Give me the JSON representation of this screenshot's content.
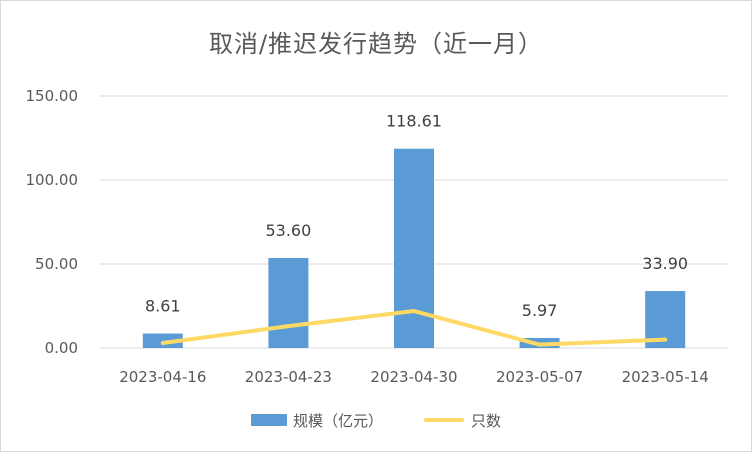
{
  "chart_data": {
    "type": "bar",
    "title": "取消/推迟发行趋势（近一月）",
    "categories": [
      "2023-04-16",
      "2023-04-23",
      "2023-04-30",
      "2023-05-07",
      "2023-05-14"
    ],
    "series": [
      {
        "name": "规模（亿元）",
        "type": "bar",
        "values": [
          8.61,
          53.6,
          118.61,
          5.97,
          33.9
        ],
        "color": "#5b9bd5"
      },
      {
        "name": "只数",
        "type": "line",
        "values": [
          3,
          13,
          22,
          2,
          5
        ],
        "color": "#ffd966"
      }
    ],
    "data_labels": [
      "8.61",
      "53.60",
      "118.61",
      "5.97",
      "33.90"
    ],
    "yticks": [
      "0.00",
      "50.00",
      "100.00",
      "150.00"
    ],
    "ylim": [
      0,
      150
    ],
    "grid": true,
    "legend_position": "bottom"
  }
}
